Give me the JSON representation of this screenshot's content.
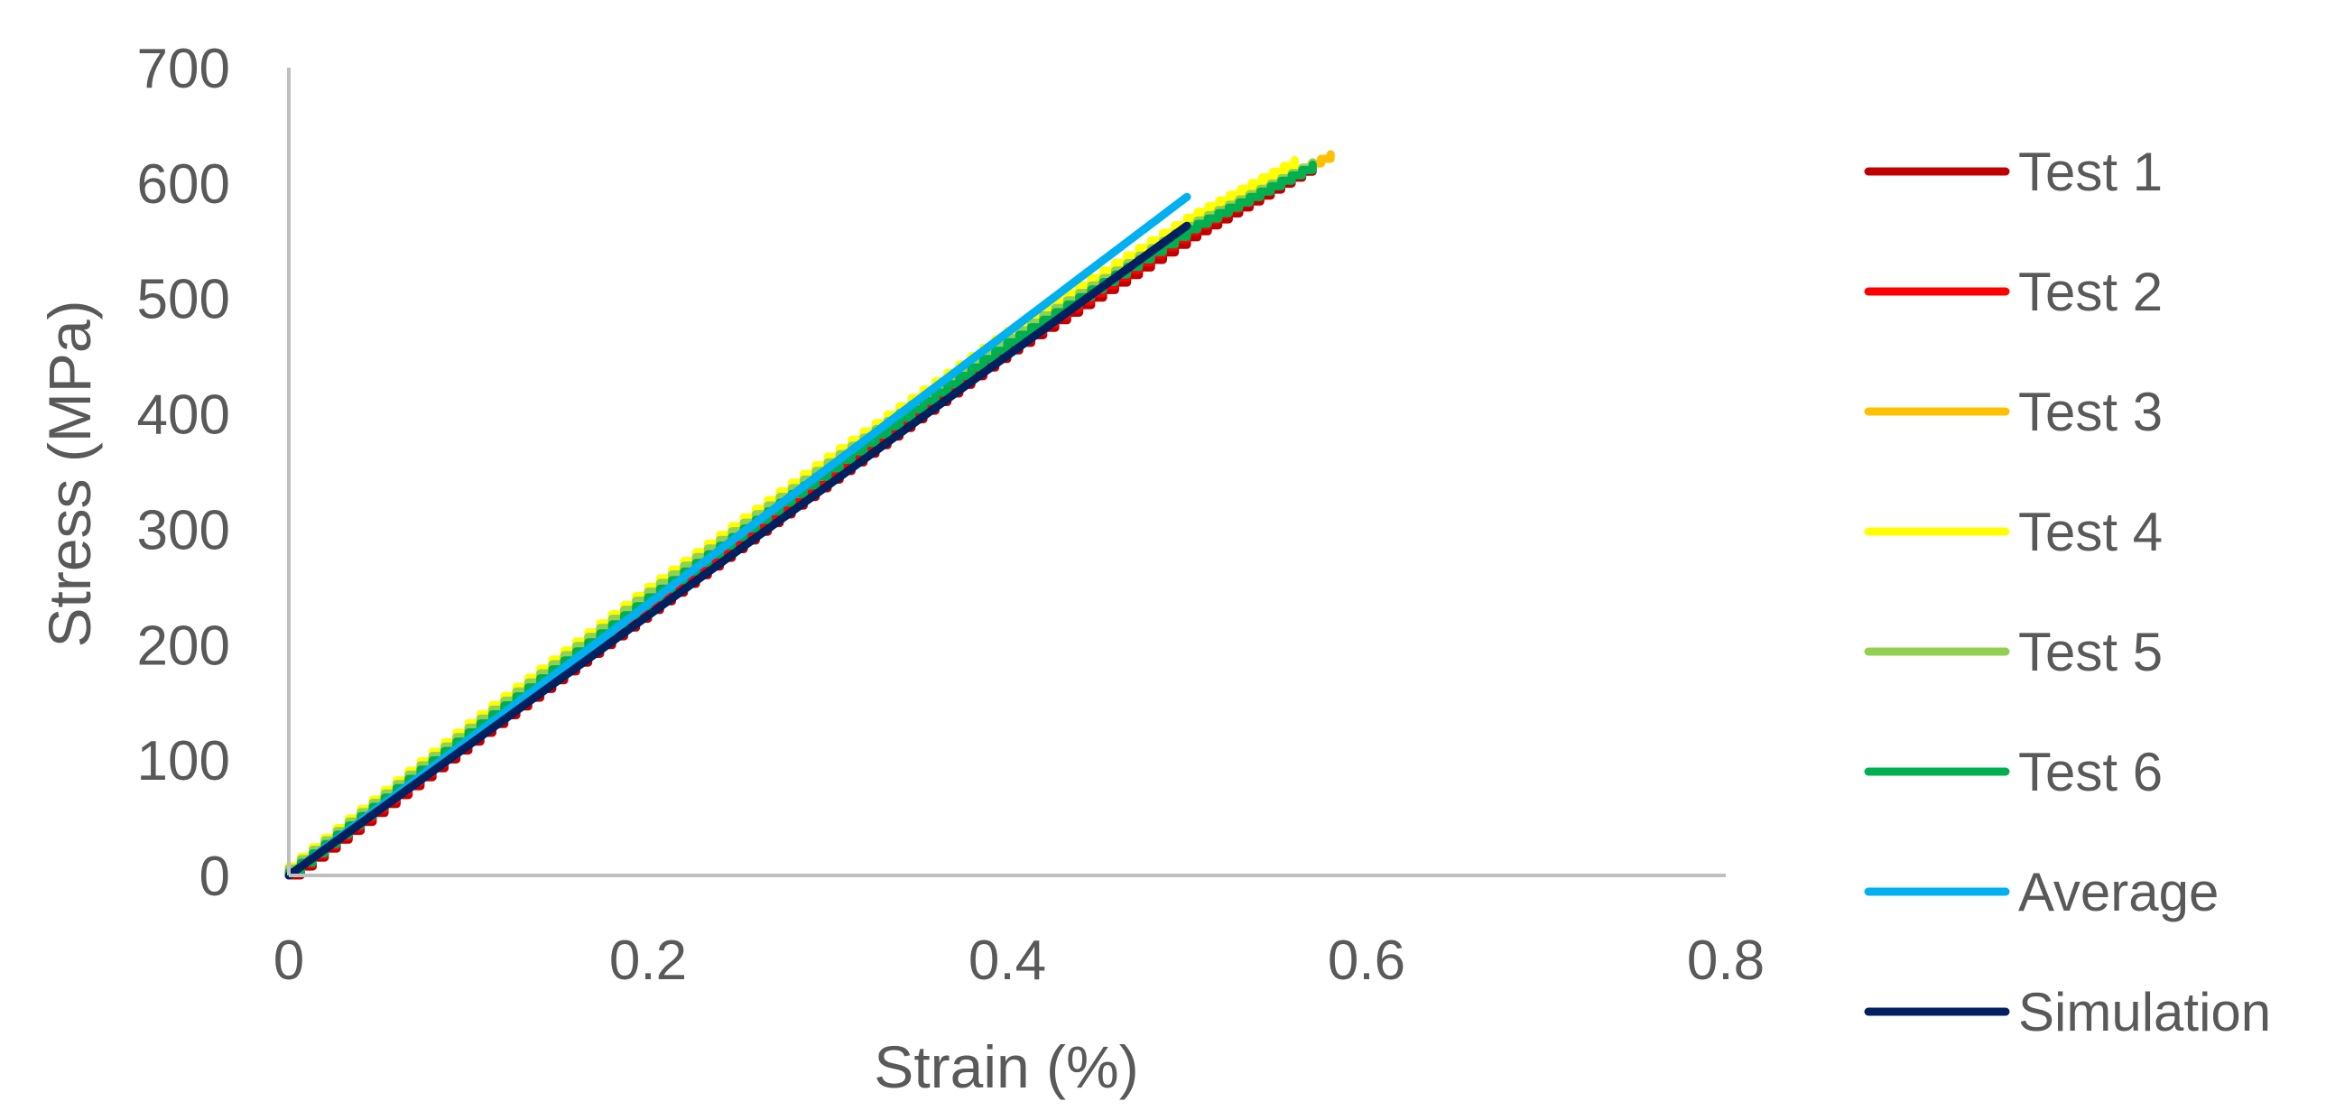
{
  "chart_data": {
    "type": "line",
    "title": "",
    "xlabel": "Strain (%)",
    "ylabel": "Stress (MPa)",
    "xlim": [
      0,
      0.8
    ],
    "ylim": [
      0,
      700
    ],
    "x_ticks": [
      "0",
      "0.2",
      "0.4",
      "0.6",
      "0.8"
    ],
    "y_ticks": [
      "0",
      "100",
      "200",
      "300",
      "400",
      "500",
      "600",
      "700"
    ],
    "x_tick_values": [
      0,
      0.2,
      0.4,
      0.6,
      0.8
    ],
    "y_tick_values": [
      0,
      100,
      200,
      300,
      400,
      500,
      600,
      700
    ],
    "grid": false,
    "legend_position": "right",
    "series": [
      {
        "name": "Test 1",
        "color": "#C00000",
        "stepped": true,
        "x": [
          0,
          0.1,
          0.2,
          0.3,
          0.4,
          0.5,
          0.57
        ],
        "y": [
          0,
          116,
          230,
          343,
          455,
          553,
          615
        ]
      },
      {
        "name": "Test 2",
        "color": "#FF0000",
        "stepped": true,
        "x": [
          0,
          0.1,
          0.2,
          0.3,
          0.4,
          0.5,
          0.57
        ],
        "y": [
          2,
          120,
          234,
          346,
          458,
          558,
          617
        ]
      },
      {
        "name": "Test 3",
        "color": "#FFC000",
        "stepped": true,
        "x": [
          0,
          0.1,
          0.2,
          0.3,
          0.4,
          0.5,
          0.58
        ],
        "y": [
          5,
          127,
          245,
          358,
          466,
          565,
          625
        ]
      },
      {
        "name": "Test 4",
        "color": "#FFFF00",
        "stepped": true,
        "x": [
          0,
          0.1,
          0.2,
          0.3,
          0.4,
          0.5,
          0.56
        ],
        "y": [
          8,
          132,
          250,
          363,
          472,
          570,
          620
        ]
      },
      {
        "name": "Test 5",
        "color": "#92D050",
        "stepped": true,
        "x": [
          0,
          0.1,
          0.2,
          0.3,
          0.4,
          0.5,
          0.57
        ],
        "y": [
          6,
          128,
          246,
          358,
          466,
          563,
          618
        ]
      },
      {
        "name": "Test 6",
        "color": "#00B050",
        "stepped": true,
        "x": [
          0,
          0.1,
          0.2,
          0.3,
          0.4,
          0.5,
          0.57
        ],
        "y": [
          3,
          124,
          241,
          353,
          462,
          560,
          616
        ]
      },
      {
        "name": "Average",
        "color": "#00B0F0",
        "stepped": false,
        "x": [
          0,
          0.5
        ],
        "y": [
          0,
          588
        ]
      },
      {
        "name": "Simulation",
        "color": "#002060",
        "stepped": false,
        "x": [
          0,
          0.5
        ],
        "y": [
          0,
          563
        ]
      }
    ]
  }
}
